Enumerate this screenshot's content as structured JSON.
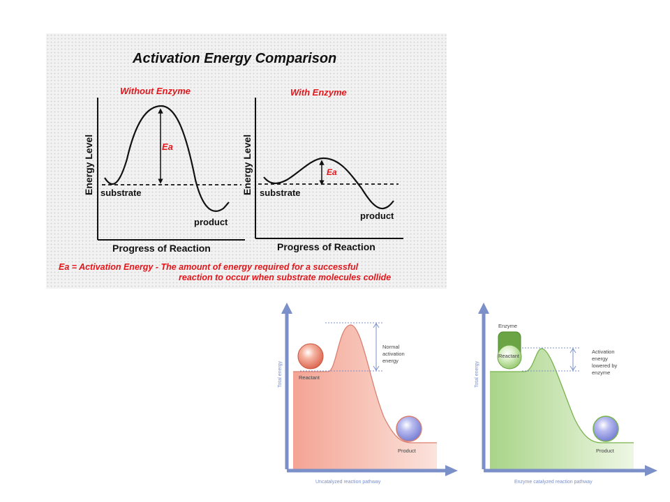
{
  "top": {
    "title": "Activation Energy Comparison",
    "left": {
      "subtitle": "Without Enzyme",
      "ylabel": "Energy Level",
      "xlabel": "Progress of Reaction",
      "substrate": "substrate",
      "product": "product",
      "ea": "Ea"
    },
    "right": {
      "subtitle": "With Enzyme",
      "ylabel": "Energy Level",
      "xlabel": "Progress of Reaction",
      "substrate": "substrate",
      "product": "product",
      "ea": "Ea"
    },
    "caption_line1": "Ea = Activation Energy - The amount of energy required for a successful",
    "caption_line2": "reaction to occur when substrate molecules collide"
  },
  "bottom_left": {
    "ylabel": "Total energy",
    "xlabel": "Uncatalyzed reaction pathway",
    "reactant": "Reactant",
    "product": "Product",
    "annotation_line1": "Normal",
    "annotation_line2": "activation",
    "annotation_line3": "energy",
    "fill_color": "#f4a494",
    "curve_color": "#d98070"
  },
  "bottom_right": {
    "ylabel": "Total energy",
    "xlabel": "Enzyme catalyzed reaction pathway",
    "enzyme": "Enzyme",
    "reactant": "Reactant",
    "product": "Product",
    "annotation_line1": "Activation",
    "annotation_line2": "energy",
    "annotation_line3": "lowered by",
    "annotation_line4": "enzyme",
    "fill_color": "#a9d488",
    "curve_color": "#78b34e"
  },
  "colors": {
    "title_red": "#e3161b",
    "axis_blue": "#7b8fc8",
    "sphere_blue": "#8f96e0",
    "sphere_red": "#e8866f"
  }
}
